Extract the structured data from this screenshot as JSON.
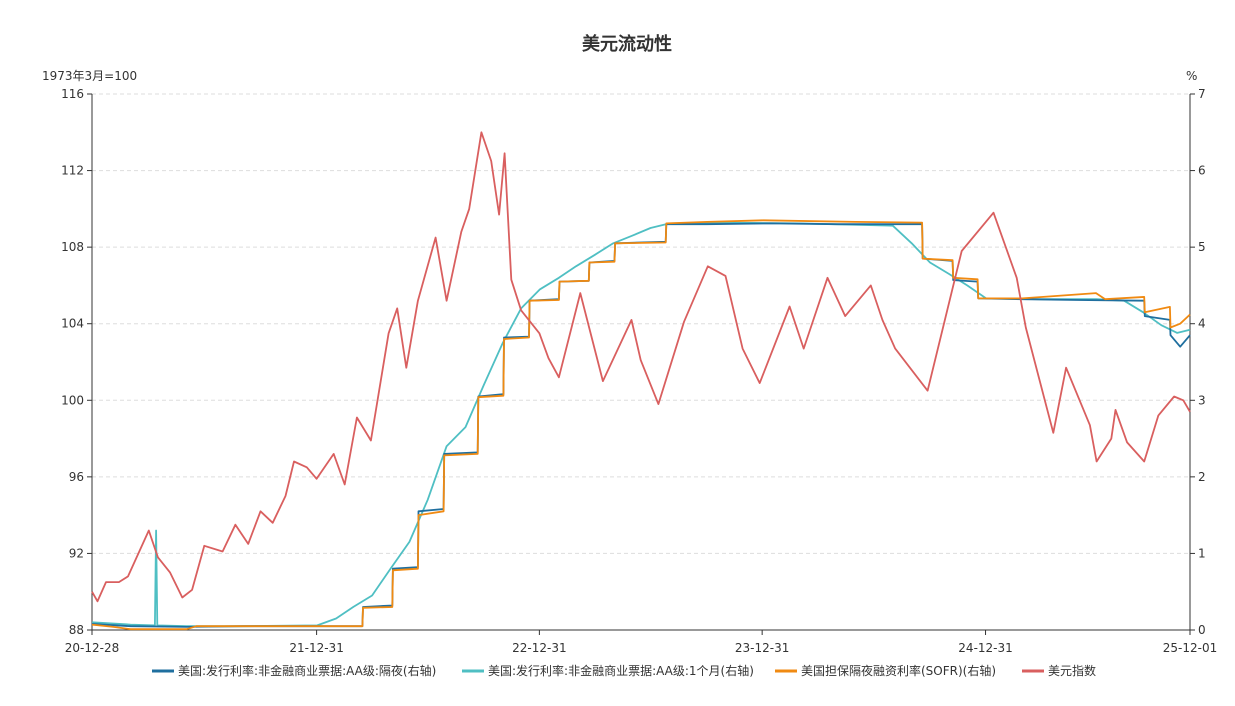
{
  "chart_data": {
    "type": "line",
    "title": "美元流动性",
    "left_axis_unit": "1973年3月=100",
    "right_axis_unit": "%",
    "ylim_left": [
      88,
      116
    ],
    "yticks_left": [
      88,
      92,
      96,
      100,
      104,
      108,
      112,
      116
    ],
    "ylim_right": [
      0,
      7
    ],
    "yticks_right": [
      0,
      1,
      2,
      3,
      4,
      5,
      6,
      7
    ],
    "xlim": [
      "2020-12-28",
      "2025-12-01"
    ],
    "xticks": [
      "20-12-28",
      "21-12-31",
      "22-12-31",
      "23-12-31",
      "24-12-31",
      "25-12-01"
    ],
    "grid": true,
    "legend_position": "bottom",
    "colors": {
      "cp_overnight": "#1f6f9f",
      "cp_1m": "#4fbfc3",
      "sofr": "#f08a12",
      "dxy": "#d95f5f"
    },
    "series": [
      {
        "key": "cp_overnight",
        "name": "美国:发行利率:非金融商业票据:AA级:隔夜(右轴)",
        "axis": "right",
        "points": [
          [
            "2020-12-28",
            0.08
          ],
          [
            "2021-03-01",
            0.05
          ],
          [
            "2021-06-01",
            0.04
          ],
          [
            "2021-09-01",
            0.05
          ],
          [
            "2022-01-01",
            0.05
          ],
          [
            "2022-03-16",
            0.05
          ],
          [
            "2022-03-17",
            0.3
          ],
          [
            "2022-05-04",
            0.32
          ],
          [
            "2022-05-05",
            0.8
          ],
          [
            "2022-06-15",
            0.82
          ],
          [
            "2022-06-16",
            1.55
          ],
          [
            "2022-07-27",
            1.58
          ],
          [
            "2022-07-28",
            2.3
          ],
          [
            "2022-09-21",
            2.32
          ],
          [
            "2022-09-22",
            3.05
          ],
          [
            "2022-11-02",
            3.08
          ],
          [
            "2022-11-03",
            3.82
          ],
          [
            "2022-12-14",
            3.83
          ],
          [
            "2022-12-15",
            4.3
          ],
          [
            "2023-02-01",
            4.32
          ],
          [
            "2023-02-02",
            4.55
          ],
          [
            "2023-03-22",
            4.56
          ],
          [
            "2023-03-23",
            4.8
          ],
          [
            "2023-05-03",
            4.82
          ],
          [
            "2023-05-04",
            5.05
          ],
          [
            "2023-07-26",
            5.07
          ],
          [
            "2023-07-27",
            5.3
          ],
          [
            "2023-10-01",
            5.3
          ],
          [
            "2024-01-15",
            5.31
          ],
          [
            "2024-05-01",
            5.3
          ],
          [
            "2024-09-18",
            5.3
          ],
          [
            "2024-09-19",
            4.85
          ],
          [
            "2024-11-07",
            4.82
          ],
          [
            "2024-11-08",
            4.57
          ],
          [
            "2024-12-18",
            4.55
          ],
          [
            "2024-12-19",
            4.33
          ],
          [
            "2025-03-01",
            4.32
          ],
          [
            "2025-06-01",
            4.31
          ],
          [
            "2025-09-17",
            4.3
          ],
          [
            "2025-09-18",
            4.1
          ],
          [
            "2025-10-29",
            4.05
          ],
          [
            "2025-10-30",
            3.85
          ],
          [
            "2025-11-15",
            3.7
          ],
          [
            "2025-12-01",
            3.85
          ]
        ]
      },
      {
        "key": "cp_1m",
        "name": "美国:发行利率:非金融商业票据:AA级:1个月(右轴)",
        "axis": "right",
        "points": [
          [
            "2020-12-28",
            0.1
          ],
          [
            "2021-03-01",
            0.07
          ],
          [
            "2021-04-10",
            0.06
          ],
          [
            "2021-04-12",
            1.3
          ],
          [
            "2021-04-14",
            0.06
          ],
          [
            "2021-06-01",
            0.05
          ],
          [
            "2021-09-01",
            0.05
          ],
          [
            "2022-01-01",
            0.06
          ],
          [
            "2022-02-01",
            0.15
          ],
          [
            "2022-03-01",
            0.3
          ],
          [
            "2022-04-01",
            0.45
          ],
          [
            "2022-05-01",
            0.8
          ],
          [
            "2022-06-01",
            1.15
          ],
          [
            "2022-07-01",
            1.7
          ],
          [
            "2022-08-01",
            2.4
          ],
          [
            "2022-09-01",
            2.65
          ],
          [
            "2022-10-01",
            3.2
          ],
          [
            "2022-11-01",
            3.75
          ],
          [
            "2022-12-01",
            4.2
          ],
          [
            "2023-01-01",
            4.45
          ],
          [
            "2023-02-01",
            4.6
          ],
          [
            "2023-03-01",
            4.75
          ],
          [
            "2023-04-01",
            4.9
          ],
          [
            "2023-05-01",
            5.05
          ],
          [
            "2023-06-01",
            5.15
          ],
          [
            "2023-07-01",
            5.25
          ],
          [
            "2023-08-01",
            5.31
          ],
          [
            "2023-11-01",
            5.32
          ],
          [
            "2024-03-01",
            5.31
          ],
          [
            "2024-08-01",
            5.28
          ],
          [
            "2024-09-01",
            5.05
          ],
          [
            "2024-10-01",
            4.8
          ],
          [
            "2024-11-01",
            4.65
          ],
          [
            "2024-12-01",
            4.5
          ],
          [
            "2025-01-01",
            4.33
          ],
          [
            "2025-04-01",
            4.32
          ],
          [
            "2025-07-01",
            4.32
          ],
          [
            "2025-08-15",
            4.3
          ],
          [
            "2025-09-15",
            4.15
          ],
          [
            "2025-10-15",
            3.98
          ],
          [
            "2025-11-10",
            3.88
          ],
          [
            "2025-12-01",
            3.92
          ]
        ]
      },
      {
        "key": "sofr",
        "name": "美国担保隔夜融资利率(SOFR)(右轴)",
        "axis": "right",
        "points": [
          [
            "2020-12-28",
            0.07
          ],
          [
            "2021-02-01",
            0.04
          ],
          [
            "2021-03-01",
            0.01
          ],
          [
            "2021-06-01",
            0.01
          ],
          [
            "2021-06-17",
            0.05
          ],
          [
            "2021-09-01",
            0.05
          ],
          [
            "2022-01-01",
            0.05
          ],
          [
            "2022-03-16",
            0.05
          ],
          [
            "2022-03-17",
            0.29
          ],
          [
            "2022-05-04",
            0.3
          ],
          [
            "2022-05-05",
            0.78
          ],
          [
            "2022-06-15",
            0.8
          ],
          [
            "2022-06-16",
            1.5
          ],
          [
            "2022-07-27",
            1.55
          ],
          [
            "2022-07-28",
            2.28
          ],
          [
            "2022-09-21",
            2.3
          ],
          [
            "2022-09-22",
            3.04
          ],
          [
            "2022-11-02",
            3.06
          ],
          [
            "2022-11-03",
            3.8
          ],
          [
            "2022-12-14",
            3.82
          ],
          [
            "2022-12-15",
            4.3
          ],
          [
            "2023-02-01",
            4.31
          ],
          [
            "2023-02-02",
            4.55
          ],
          [
            "2023-03-22",
            4.56
          ],
          [
            "2023-03-23",
            4.8
          ],
          [
            "2023-05-03",
            4.81
          ],
          [
            "2023-05-04",
            5.05
          ],
          [
            "2023-07-26",
            5.06
          ],
          [
            "2023-07-27",
            5.31
          ],
          [
            "2023-10-02",
            5.33
          ],
          [
            "2024-01-02",
            5.35
          ],
          [
            "2024-06-01",
            5.33
          ],
          [
            "2024-09-18",
            5.32
          ],
          [
            "2024-09-19",
            4.85
          ],
          [
            "2024-11-07",
            4.83
          ],
          [
            "2024-11-08",
            4.6
          ],
          [
            "2024-12-18",
            4.58
          ],
          [
            "2024-12-19",
            4.33
          ],
          [
            "2025-03-01",
            4.33
          ],
          [
            "2025-06-30",
            4.4
          ],
          [
            "2025-07-15",
            4.32
          ],
          [
            "2025-09-17",
            4.35
          ],
          [
            "2025-09-18",
            4.15
          ],
          [
            "2025-10-29",
            4.22
          ],
          [
            "2025-10-30",
            3.95
          ],
          [
            "2025-11-15",
            4.0
          ],
          [
            "2025-12-01",
            4.12
          ]
        ]
      },
      {
        "key": "dxy",
        "name": "美元指数",
        "axis": "left",
        "points": [
          [
            "2020-12-28",
            90.0
          ],
          [
            "2021-01-06",
            89.5
          ],
          [
            "2021-01-20",
            90.5
          ],
          [
            "2021-02-10",
            90.5
          ],
          [
            "2021-02-25",
            90.8
          ],
          [
            "2021-03-31",
            93.2
          ],
          [
            "2021-04-15",
            91.8
          ],
          [
            "2021-05-05",
            91.0
          ],
          [
            "2021-05-25",
            89.7
          ],
          [
            "2021-06-10",
            90.1
          ],
          [
            "2021-06-30",
            92.4
          ],
          [
            "2021-07-30",
            92.1
          ],
          [
            "2021-08-20",
            93.5
          ],
          [
            "2021-09-10",
            92.5
          ],
          [
            "2021-09-30",
            94.2
          ],
          [
            "2021-10-20",
            93.6
          ],
          [
            "2021-11-10",
            95.0
          ],
          [
            "2021-11-24",
            96.8
          ],
          [
            "2021-12-15",
            96.5
          ],
          [
            "2021-12-31",
            95.9
          ],
          [
            "2022-01-28",
            97.2
          ],
          [
            "2022-02-15",
            95.6
          ],
          [
            "2022-03-07",
            99.1
          ],
          [
            "2022-03-30",
            97.9
          ],
          [
            "2022-04-28",
            103.5
          ],
          [
            "2022-05-12",
            104.8
          ],
          [
            "2022-05-27",
            101.7
          ],
          [
            "2022-06-15",
            105.2
          ],
          [
            "2022-07-14",
            108.5
          ],
          [
            "2022-08-01",
            105.2
          ],
          [
            "2022-08-25",
            108.8
          ],
          [
            "2022-09-07",
            110.0
          ],
          [
            "2022-09-27",
            114.0
          ],
          [
            "2022-10-13",
            112.5
          ],
          [
            "2022-10-26",
            109.7
          ],
          [
            "2022-11-04",
            112.9
          ],
          [
            "2022-11-15",
            106.3
          ],
          [
            "2022-12-01",
            104.7
          ],
          [
            "2022-12-31",
            103.5
          ],
          [
            "2023-01-15",
            102.2
          ],
          [
            "2023-02-01",
            101.2
          ],
          [
            "2023-03-08",
            105.6
          ],
          [
            "2023-04-14",
            101.0
          ],
          [
            "2023-05-31",
            104.2
          ],
          [
            "2023-06-15",
            102.1
          ],
          [
            "2023-07-14",
            99.8
          ],
          [
            "2023-08-25",
            104.1
          ],
          [
            "2023-10-03",
            107.0
          ],
          [
            "2023-11-01",
            106.5
          ],
          [
            "2023-11-29",
            102.7
          ],
          [
            "2023-12-27",
            100.9
          ],
          [
            "2024-02-14",
            104.9
          ],
          [
            "2024-03-08",
            102.7
          ],
          [
            "2024-04-16",
            106.4
          ],
          [
            "2024-05-15",
            104.4
          ],
          [
            "2024-06-26",
            106.0
          ],
          [
            "2024-07-15",
            104.2
          ],
          [
            "2024-08-05",
            102.7
          ],
          [
            "2024-09-27",
            100.5
          ],
          [
            "2024-11-22",
            107.8
          ],
          [
            "2025-01-13",
            109.8
          ],
          [
            "2025-02-20",
            106.4
          ],
          [
            "2025-03-07",
            103.8
          ],
          [
            "2025-04-21",
            98.3
          ],
          [
            "2025-05-12",
            101.7
          ],
          [
            "2025-06-20",
            98.7
          ],
          [
            "2025-07-01",
            96.8
          ],
          [
            "2025-07-25",
            98.0
          ],
          [
            "2025-08-01",
            99.5
          ],
          [
            "2025-08-20",
            97.8
          ],
          [
            "2025-09-17",
            96.8
          ],
          [
            "2025-10-10",
            99.2
          ],
          [
            "2025-11-05",
            100.2
          ],
          [
            "2025-11-20",
            100.0
          ],
          [
            "2025-12-01",
            99.4
          ]
        ]
      }
    ]
  }
}
